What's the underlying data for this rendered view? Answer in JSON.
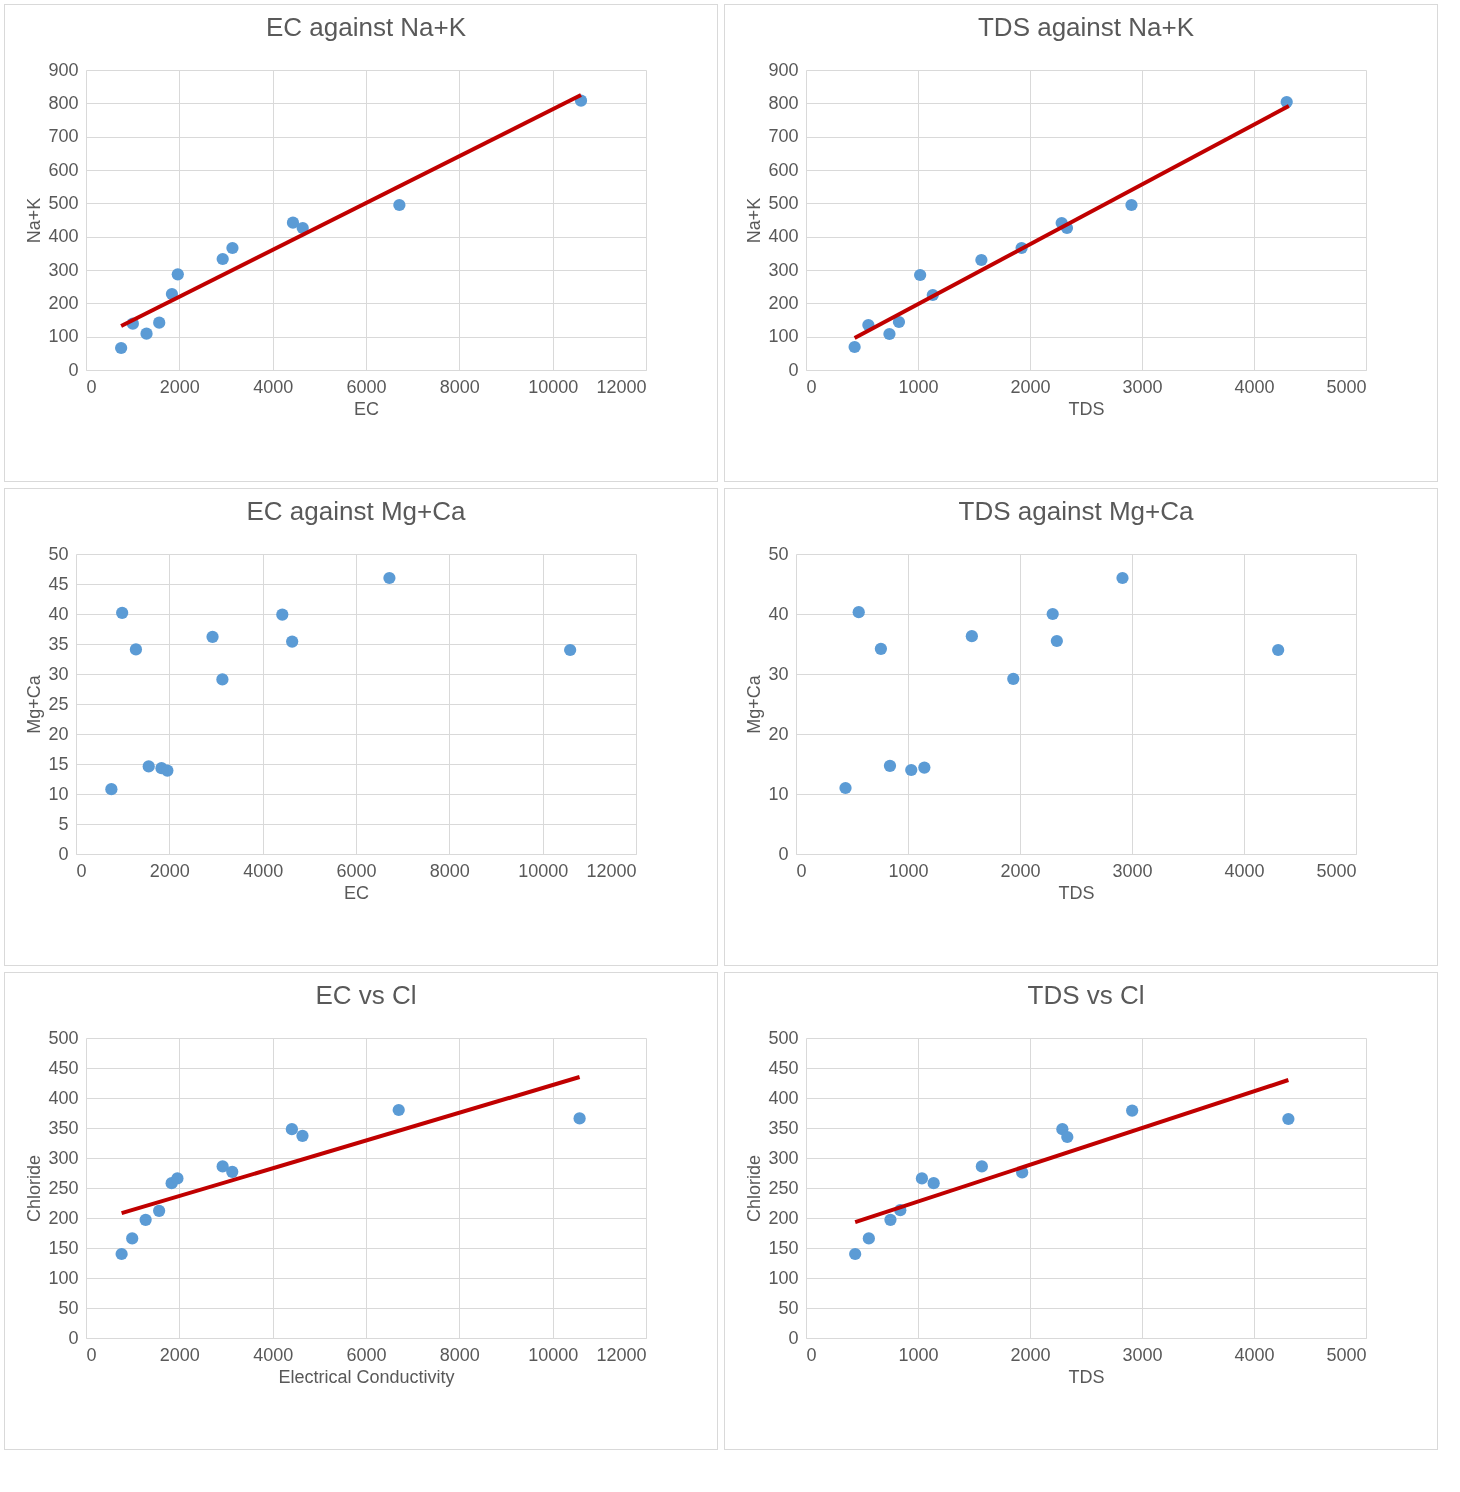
{
  "chart_data": [
    {
      "type": "scatter",
      "title": "EC against Na+K",
      "xlabel": "EC",
      "ylabel": "Na+K",
      "xlim": [
        0,
        12000
      ],
      "xticks": [
        0,
        2000,
        4000,
        6000,
        8000,
        10000,
        12000
      ],
      "ylim": [
        0,
        900
      ],
      "yticks": [
        0,
        100,
        200,
        300,
        400,
        500,
        600,
        700,
        800,
        900
      ],
      "grid": true,
      "series": [
        {
          "type": "scatter",
          "marker": "circle",
          "color": "#5b9bd5",
          "x": [
            753,
            1004,
            1297,
            1569,
            1841,
            1967,
            2929,
            3138,
            4435,
            4644,
            6715,
            10607
          ],
          "values": [
            66,
            139,
            109,
            142,
            228,
            287,
            333,
            366,
            442,
            426,
            495,
            808
          ]
        },
        {
          "type": "line",
          "color": "#c00000",
          "x": [
            753,
            10607
          ],
          "values": [
            132,
            825
          ]
        }
      ]
    },
    {
      "type": "scatter",
      "title": "TDS against Na+K",
      "xlabel": "TDS",
      "ylabel": "Na+K",
      "xlim": [
        0,
        5000
      ],
      "xticks": [
        0,
        1000,
        2000,
        3000,
        4000,
        5000
      ],
      "ylim": [
        0,
        900
      ],
      "yticks": [
        0,
        100,
        200,
        300,
        400,
        500,
        600,
        700,
        800,
        900
      ],
      "grid": true,
      "series": [
        {
          "type": "scatter",
          "marker": "circle",
          "color": "#5b9bd5",
          "x": [
            434,
            557,
            745,
            830,
            1132,
            1019,
            1566,
            1925,
            2283,
            2330,
            2906,
            4292
          ],
          "values": [
            69,
            135,
            108,
            144,
            225,
            285,
            330,
            366,
            441,
            426,
            495,
            804
          ]
        },
        {
          "type": "line",
          "color": "#c00000",
          "x": [
            434,
            4311
          ],
          "values": [
            96,
            792
          ]
        }
      ]
    },
    {
      "type": "scatter",
      "title": "EC against Mg+Ca",
      "xlabel": "EC",
      "ylabel": "Mg+Ca",
      "xlim": [
        0,
        12000
      ],
      "xticks": [
        0,
        2000,
        4000,
        6000,
        8000,
        10000,
        12000
      ],
      "ylim": [
        0,
        50
      ],
      "yticks": [
        0,
        5,
        10,
        15,
        20,
        25,
        30,
        35,
        40,
        45,
        50
      ],
      "grid": true,
      "series": [
        {
          "type": "scatter",
          "marker": "circle",
          "color": "#5b9bd5",
          "x": [
            758,
            989,
            1284,
            1558,
            1832,
            1958,
            2926,
            3137,
            4421,
            4632,
            6716,
            10589
          ],
          "values": [
            10.8,
            40.2,
            34.1,
            14.6,
            14.3,
            13.9,
            36.2,
            29.1,
            39.9,
            35.4,
            46.0,
            34.0
          ]
        }
      ]
    },
    {
      "type": "scatter",
      "title": "TDS against Mg+Ca",
      "xlabel": "TDS",
      "ylabel": "Mg+Ca",
      "xlim": [
        0,
        5000
      ],
      "xticks": [
        0,
        1000,
        2000,
        3000,
        4000,
        5000
      ],
      "ylim": [
        0,
        50
      ],
      "yticks": [
        0,
        10,
        20,
        30,
        40,
        50
      ],
      "grid": true,
      "series": [
        {
          "type": "scatter",
          "marker": "circle",
          "color": "#5b9bd5",
          "x": [
            442,
            560,
            758,
            839,
            1029,
            1146,
            1570,
            1940,
            2292,
            2329,
            2915,
            4305
          ],
          "values": [
            11.0,
            40.3,
            34.2,
            14.7,
            14.0,
            14.4,
            36.3,
            29.2,
            40.0,
            35.5,
            46.0,
            34.0
          ]
        }
      ]
    },
    {
      "type": "scatter",
      "title": "EC vs Cl",
      "xlabel": "Electrical Conductivity",
      "ylabel": "Chloride",
      "xlim": [
        0,
        12000
      ],
      "xticks": [
        0,
        2000,
        4000,
        6000,
        8000,
        10000,
        12000
      ],
      "ylim": [
        0,
        500
      ],
      "yticks": [
        0,
        50,
        100,
        150,
        200,
        250,
        300,
        350,
        400,
        450,
        500
      ],
      "grid": true,
      "series": [
        {
          "type": "scatter",
          "marker": "circle",
          "color": "#5b9bd5",
          "x": [
            763,
            990,
            1278,
            1567,
            1835,
            1959,
            2928,
            3134,
            4412,
            4639,
            6701,
            10577
          ],
          "values": [
            140,
            166,
            197,
            212,
            258,
            266,
            286,
            277,
            348,
            337,
            380,
            366
          ]
        },
        {
          "type": "line",
          "color": "#c00000",
          "x": [
            763,
            10577
          ],
          "values": [
            208,
            435
          ]
        }
      ]
    },
    {
      "type": "scatter",
      "title": "TDS vs Cl",
      "xlabel": "TDS",
      "ylabel": "Chloride",
      "xlim": [
        0,
        5000
      ],
      "xticks": [
        0,
        1000,
        2000,
        3000,
        4000,
        5000
      ],
      "ylim": [
        0,
        500
      ],
      "yticks": [
        0,
        50,
        100,
        150,
        200,
        250,
        300,
        350,
        400,
        450,
        500
      ],
      "grid": true,
      "series": [
        {
          "type": "scatter",
          "marker": "circle",
          "color": "#5b9bd5",
          "x": [
            439,
            561,
            754,
            842,
            1035,
            1140,
            1570,
            1930,
            2289,
            2333,
            2912,
            4307
          ],
          "values": [
            140,
            166,
            197,
            213,
            266,
            258,
            286,
            276,
            348,
            335,
            379,
            365
          ]
        },
        {
          "type": "line",
          "color": "#c00000",
          "x": [
            439,
            4307
          ],
          "values": [
            193,
            430
          ]
        }
      ]
    }
  ]
}
